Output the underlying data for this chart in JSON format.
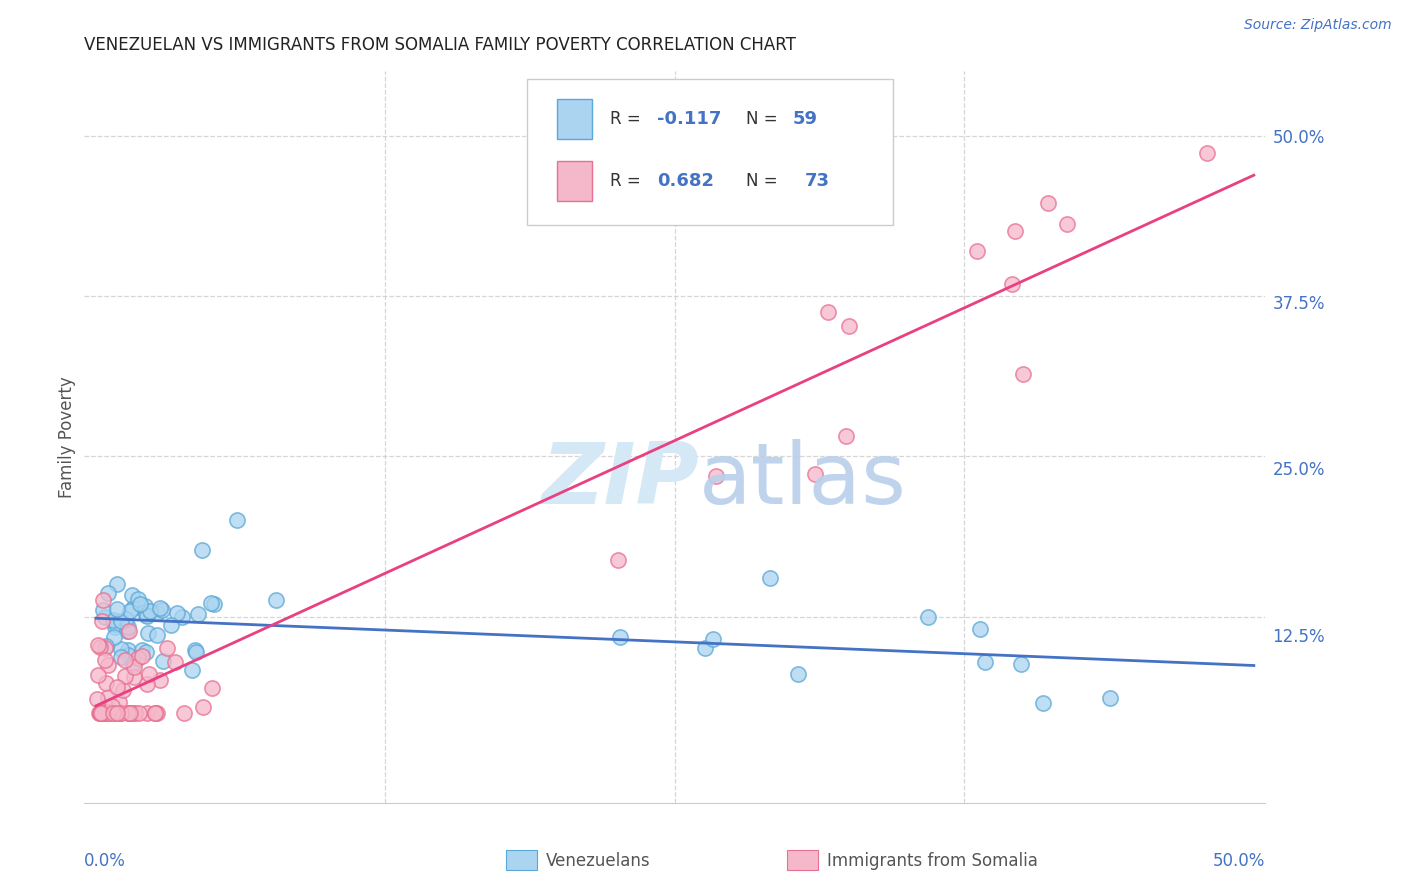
{
  "title": "VENEZUELAN VS IMMIGRANTS FROM SOMALIA FAMILY POVERTY CORRELATION CHART",
  "source": "Source: ZipAtlas.com",
  "ylabel": "Family Poverty",
  "ytick_labels": [
    "12.5%",
    "25.0%",
    "37.5%",
    "50.0%"
  ],
  "ytick_values": [
    0.125,
    0.25,
    0.375,
    0.5
  ],
  "xtick_labels": [
    "0.0%",
    "50.0%"
  ],
  "xtick_values": [
    0.0,
    0.5
  ],
  "xlim": [
    0.0,
    0.5
  ],
  "ylim": [
    0.0,
    0.55
  ],
  "legend_venezuelans": "Venezuelans",
  "legend_somalia": "Immigrants from Somalia",
  "R_venezuelan": -0.117,
  "N_venezuelan": 59,
  "R_somalia": 0.682,
  "N_somalia": 73,
  "color_venezuelan_fill": "#aad4f0",
  "color_venezuelan_edge": "#5ba8d8",
  "color_somalia_fill": "#f5b8cb",
  "color_somalia_edge": "#e87090",
  "color_line_venezuelan": "#4472C4",
  "color_line_somalia": "#E84080",
  "color_title": "#222222",
  "color_source": "#4472C4",
  "color_yticks": "#4472C4",
  "color_label": "#555555",
  "color_R_label": "#333333",
  "color_R_value": "#4472C4",
  "grid_color": "#cccccc",
  "watermark_ZIP_color": "#d5e8f5",
  "watermark_atlas_color": "#b8d0ea"
}
